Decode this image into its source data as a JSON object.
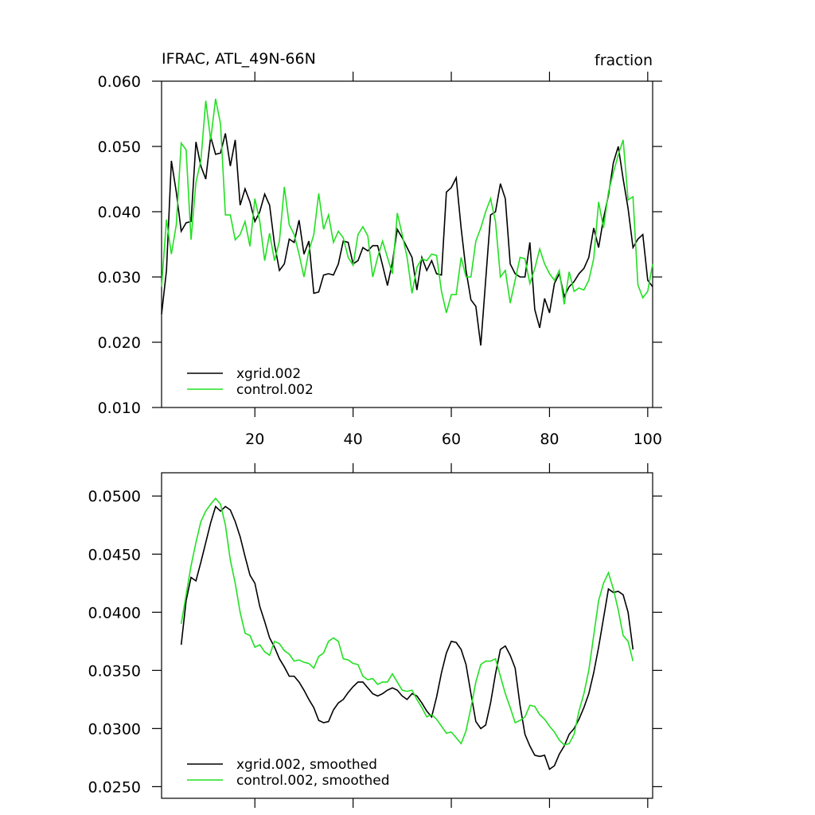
{
  "chart_data": [
    {
      "type": "line",
      "title": "IFRAC, ATL_49N-66N",
      "units": "fraction",
      "x": [
        1,
        2,
        3,
        4,
        5,
        6,
        7,
        8,
        9,
        10,
        11,
        12,
        13,
        14,
        15,
        16,
        17,
        18,
        19,
        20,
        21,
        22,
        23,
        24,
        25,
        26,
        27,
        28,
        29,
        30,
        31,
        32,
        33,
        34,
        35,
        36,
        37,
        38,
        39,
        40,
        41,
        42,
        43,
        44,
        45,
        46,
        47,
        48,
        49,
        50,
        51,
        52,
        53,
        54,
        55,
        56,
        57,
        58,
        59,
        60,
        61,
        62,
        63,
        64,
        65,
        66,
        67,
        68,
        69,
        70,
        71,
        72,
        73,
        74,
        75,
        76,
        77,
        78,
        79,
        80,
        81,
        82,
        83,
        84,
        85,
        86,
        87,
        88,
        89,
        90,
        91,
        92,
        93,
        94,
        95,
        96,
        97,
        98,
        99,
        100,
        101
      ],
      "xlim": [
        1,
        101
      ],
      "xticks": [
        20,
        40,
        60,
        80,
        100
      ],
      "xtick_labels": true,
      "ylim": [
        0.01,
        0.06
      ],
      "yticks": [
        {
          "value": 0.01,
          "label": "0.010"
        },
        {
          "value": 0.02,
          "label": "0.020"
        },
        {
          "value": 0.03,
          "label": "0.030"
        },
        {
          "value": 0.04,
          "label": "0.040"
        },
        {
          "value": 0.05,
          "label": "0.050"
        },
        {
          "value": 0.06,
          "label": "0.060"
        }
      ],
      "legend": "lower left",
      "series": [
        {
          "name": "xgrid.002",
          "color": "#000000",
          "values": [
            0.0243,
            0.031,
            0.0478,
            0.043,
            0.037,
            0.0383,
            0.0385,
            0.0507,
            0.047,
            0.045,
            0.0515,
            0.0488,
            0.049,
            0.052,
            0.047,
            0.051,
            0.041,
            0.0435,
            0.0415,
            0.0385,
            0.04,
            0.0427,
            0.041,
            0.035,
            0.031,
            0.032,
            0.0358,
            0.0353,
            0.0387,
            0.0335,
            0.0355,
            0.0275,
            0.0277,
            0.0303,
            0.0305,
            0.0303,
            0.032,
            0.0355,
            0.0353,
            0.032,
            0.0325,
            0.0345,
            0.034,
            0.0348,
            0.0348,
            0.0318,
            0.0287,
            0.0322,
            0.0373,
            0.036,
            0.0345,
            0.033,
            0.028,
            0.033,
            0.031,
            0.0325,
            0.0305,
            0.0303,
            0.043,
            0.0437,
            0.0452,
            0.0375,
            0.031,
            0.0265,
            0.0255,
            0.0195,
            0.0295,
            0.0395,
            0.04,
            0.0443,
            0.042,
            0.032,
            0.0305,
            0.03,
            0.03,
            0.0353,
            0.025,
            0.0222,
            0.0267,
            0.0245,
            0.029,
            0.0305,
            0.027,
            0.0285,
            0.0293,
            0.0305,
            0.0313,
            0.033,
            0.0375,
            0.0345,
            0.039,
            0.0425,
            0.0475,
            0.05,
            0.045,
            0.0405,
            0.0345,
            0.0358,
            0.0365,
            0.0295,
            0.0285
          ]
        },
        {
          "name": "control.002",
          "color": "#22e022",
          "values": [
            0.0285,
            0.0388,
            0.0335,
            0.038,
            0.0505,
            0.0495,
            0.0357,
            0.0445,
            0.0478,
            0.057,
            0.051,
            0.0573,
            0.0535,
            0.0395,
            0.0395,
            0.0357,
            0.0365,
            0.0385,
            0.0347,
            0.042,
            0.0385,
            0.0325,
            0.0367,
            0.0325,
            0.0355,
            0.0438,
            0.038,
            0.0365,
            0.0335,
            0.03,
            0.034,
            0.0365,
            0.0428,
            0.0373,
            0.0395,
            0.0353,
            0.037,
            0.036,
            0.033,
            0.0318,
            0.0365,
            0.0377,
            0.0363,
            0.03,
            0.033,
            0.0355,
            0.033,
            0.0305,
            0.0398,
            0.0365,
            0.033,
            0.0275,
            0.0315,
            0.0328,
            0.0325,
            0.0335,
            0.0333,
            0.0278,
            0.0245,
            0.0273,
            0.0273,
            0.033,
            0.03,
            0.03,
            0.0355,
            0.0375,
            0.04,
            0.042,
            0.0385,
            0.03,
            0.031,
            0.026,
            0.0295,
            0.033,
            0.0328,
            0.029,
            0.0313,
            0.0343,
            0.032,
            0.0305,
            0.0295,
            0.031,
            0.0258,
            0.0308,
            0.0278,
            0.0283,
            0.028,
            0.0295,
            0.0328,
            0.0415,
            0.0375,
            0.043,
            0.046,
            0.0487,
            0.051,
            0.0418,
            0.0423,
            0.0288,
            0.0268,
            0.0278,
            0.032
          ]
        }
      ]
    },
    {
      "type": "line",
      "x": [
        5,
        6,
        7,
        8,
        9,
        10,
        11,
        12,
        13,
        14,
        15,
        16,
        17,
        18,
        19,
        20,
        21,
        22,
        23,
        24,
        25,
        26,
        27,
        28,
        29,
        30,
        31,
        32,
        33,
        34,
        35,
        36,
        37,
        38,
        39,
        40,
        41,
        42,
        43,
        44,
        45,
        46,
        47,
        48,
        49,
        50,
        51,
        52,
        53,
        54,
        55,
        56,
        57,
        58,
        59,
        60,
        61,
        62,
        63,
        64,
        65,
        66,
        67,
        68,
        69,
        70,
        71,
        72,
        73,
        74,
        75,
        76,
        77,
        78,
        79,
        80,
        81,
        82,
        83,
        84,
        85,
        86,
        87,
        88,
        89,
        90,
        91,
        92,
        93,
        94,
        95,
        96,
        97
      ],
      "xlim": [
        1,
        101
      ],
      "xticks": [
        20,
        40,
        60,
        80,
        100
      ],
      "xtick_labels": false,
      "ylim": [
        0.024,
        0.052
      ],
      "yticks": [
        {
          "value": 0.025,
          "label": "0.0250"
        },
        {
          "value": 0.03,
          "label": "0.0300"
        },
        {
          "value": 0.035,
          "label": "0.0350"
        },
        {
          "value": 0.04,
          "label": "0.0400"
        },
        {
          "value": 0.045,
          "label": "0.0450"
        },
        {
          "value": 0.05,
          "label": "0.0500"
        }
      ],
      "legend": "lower left",
      "series": [
        {
          "name": "xgrid.002, smoothed",
          "color": "#000000",
          "values": [
            0.0372,
            0.041,
            0.043,
            0.0427,
            0.0443,
            0.046,
            0.0477,
            0.0491,
            0.0487,
            0.0491,
            0.0488,
            0.0478,
            0.0465,
            0.0448,
            0.0432,
            0.0425,
            0.0405,
            0.0392,
            0.0378,
            0.037,
            0.036,
            0.0353,
            0.0345,
            0.0345,
            0.034,
            0.0333,
            0.0325,
            0.0318,
            0.0307,
            0.0305,
            0.0306,
            0.0316,
            0.0322,
            0.0325,
            0.0331,
            0.0336,
            0.034,
            0.034,
            0.0335,
            0.033,
            0.0328,
            0.033,
            0.0333,
            0.0335,
            0.0333,
            0.0328,
            0.0325,
            0.033,
            0.0328,
            0.0322,
            0.0315,
            0.031,
            0.0327,
            0.0348,
            0.0365,
            0.0375,
            0.0374,
            0.0368,
            0.0355,
            0.033,
            0.0306,
            0.03,
            0.0303,
            0.0322,
            0.0347,
            0.0368,
            0.0371,
            0.0363,
            0.0352,
            0.032,
            0.0295,
            0.0285,
            0.0277,
            0.0276,
            0.0277,
            0.0265,
            0.0268,
            0.0278,
            0.0285,
            0.0295,
            0.03,
            0.0308,
            0.0318,
            0.033,
            0.0348,
            0.037,
            0.0395,
            0.042,
            0.0417,
            0.0418,
            0.0415,
            0.04,
            0.0368
          ]
        },
        {
          "name": "control.002, smoothed",
          "color": "#22e022",
          "values": [
            0.039,
            0.0415,
            0.044,
            0.046,
            0.0478,
            0.0487,
            0.0493,
            0.0498,
            0.0493,
            0.0475,
            0.0445,
            0.0425,
            0.04,
            0.0382,
            0.038,
            0.037,
            0.0372,
            0.0366,
            0.0363,
            0.0375,
            0.0373,
            0.0367,
            0.0364,
            0.0358,
            0.0359,
            0.0357,
            0.0356,
            0.0352,
            0.0362,
            0.0365,
            0.0375,
            0.0378,
            0.0375,
            0.036,
            0.0359,
            0.0356,
            0.0355,
            0.0345,
            0.0342,
            0.0343,
            0.0338,
            0.034,
            0.034,
            0.0347,
            0.034,
            0.0333,
            0.0332,
            0.0333,
            0.0325,
            0.0318,
            0.031,
            0.0312,
            0.0308,
            0.0302,
            0.0296,
            0.0297,
            0.0292,
            0.0287,
            0.0298,
            0.0318,
            0.034,
            0.0355,
            0.0358,
            0.0358,
            0.036,
            0.0345,
            0.033,
            0.0318,
            0.0305,
            0.0307,
            0.031,
            0.032,
            0.0319,
            0.0312,
            0.0308,
            0.0302,
            0.0297,
            0.029,
            0.0286,
            0.0287,
            0.0295,
            0.0315,
            0.033,
            0.035,
            0.038,
            0.041,
            0.0425,
            0.0434,
            0.042,
            0.0402,
            0.038,
            0.0375,
            0.0358
          ]
        }
      ]
    }
  ]
}
